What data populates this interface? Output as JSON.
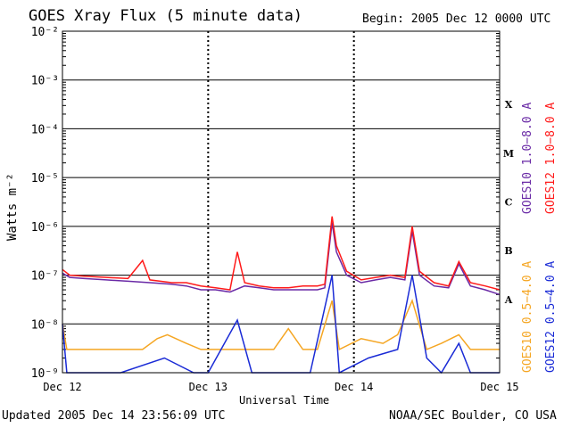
{
  "header": {
    "title": "GOES Xray Flux (5 minute data)",
    "begin": "Begin:  2005 Dec 12 0000 UTC"
  },
  "footer": {
    "updated": "Updated 2005 Dec 14 23:56:09 UTC",
    "credit": "NOAA/SEC Boulder, CO USA"
  },
  "chart_data": {
    "type": "line",
    "title": "GOES Xray Flux (5 minute data)",
    "xlabel": "Universal Time",
    "ylabel": "Watts m⁻²",
    "yscale": "log",
    "ylim_exponent": [
      -9,
      -2
    ],
    "y_tick_labels": [
      "10⁻²",
      "10⁻³",
      "10⁻⁴",
      "10⁻⁵",
      "10⁻⁶",
      "10⁻⁷",
      "10⁻⁸",
      "10⁻⁹"
    ],
    "x_tick_labels": [
      "Dec 12",
      "Dec 13",
      "Dec 14",
      "Dec 15"
    ],
    "xlim_days": [
      0,
      3
    ],
    "flare_classes": [
      "X",
      "M",
      "C",
      "B",
      "A"
    ],
    "grid": true,
    "series": [
      {
        "name": "GOES10 1.0−8.0 A",
        "color": "#6a2aa6",
        "points": [
          [
            0,
            1.1e-07
          ],
          [
            0.05,
            9e-08
          ],
          [
            0.15,
            8.5e-08
          ],
          [
            0.3,
            8e-08
          ],
          [
            0.45,
            7.5e-08
          ],
          [
            0.6,
            7e-08
          ],
          [
            0.75,
            6.5e-08
          ],
          [
            0.85,
            6e-08
          ],
          [
            0.95,
            5e-08
          ],
          [
            1.05,
            5e-08
          ],
          [
            1.15,
            4.5e-08
          ],
          [
            1.25,
            6e-08
          ],
          [
            1.35,
            5.5e-08
          ],
          [
            1.45,
            5e-08
          ],
          [
            1.55,
            5e-08
          ],
          [
            1.65,
            5e-08
          ],
          [
            1.75,
            5e-08
          ],
          [
            1.8,
            5.5e-08
          ],
          [
            1.85,
            1.2e-06
          ],
          [
            1.88,
            3e-07
          ],
          [
            1.95,
            1e-07
          ],
          [
            2.05,
            7e-08
          ],
          [
            2.15,
            8e-08
          ],
          [
            2.25,
            9e-08
          ],
          [
            2.35,
            8e-08
          ],
          [
            2.4,
            8e-07
          ],
          [
            2.45,
            1e-07
          ],
          [
            2.55,
            6e-08
          ],
          [
            2.65,
            5.5e-08
          ],
          [
            2.72,
            1.7e-07
          ],
          [
            2.8,
            6e-08
          ],
          [
            2.9,
            5e-08
          ],
          [
            3,
            4e-08
          ]
        ]
      },
      {
        "name": "GOES12 1.0−8.0 A",
        "color": "#ff1a1a",
        "points": [
          [
            0,
            1.3e-07
          ],
          [
            0.05,
            1e-07
          ],
          [
            0.15,
            9.5e-08
          ],
          [
            0.3,
            9e-08
          ],
          [
            0.45,
            8.5e-08
          ],
          [
            0.55,
            2e-07
          ],
          [
            0.6,
            8e-08
          ],
          [
            0.75,
            7e-08
          ],
          [
            0.85,
            7e-08
          ],
          [
            0.95,
            6e-08
          ],
          [
            1.05,
            5.5e-08
          ],
          [
            1.15,
            5e-08
          ],
          [
            1.2,
            3e-07
          ],
          [
            1.25,
            7e-08
          ],
          [
            1.35,
            6e-08
          ],
          [
            1.45,
            5.5e-08
          ],
          [
            1.55,
            5.5e-08
          ],
          [
            1.65,
            6e-08
          ],
          [
            1.75,
            6e-08
          ],
          [
            1.8,
            6.5e-08
          ],
          [
            1.85,
            1.6e-06
          ],
          [
            1.88,
            4e-07
          ],
          [
            1.95,
            1.2e-07
          ],
          [
            2.05,
            8e-08
          ],
          [
            2.15,
            9e-08
          ],
          [
            2.25,
            1e-07
          ],
          [
            2.35,
            9e-08
          ],
          [
            2.4,
            1e-06
          ],
          [
            2.45,
            1.2e-07
          ],
          [
            2.55,
            7e-08
          ],
          [
            2.65,
            6e-08
          ],
          [
            2.72,
            1.9e-07
          ],
          [
            2.8,
            7e-08
          ],
          [
            2.9,
            6e-08
          ],
          [
            3,
            5e-08
          ]
        ]
      },
      {
        "name": "GOES10 0.5−4.0 A",
        "color": "#f5a623",
        "points": [
          [
            0,
            1e-08
          ],
          [
            0.03,
            3e-09
          ],
          [
            0.1,
            3e-09
          ],
          [
            0.3,
            3e-09
          ],
          [
            0.55,
            3e-09
          ],
          [
            0.65,
            5e-09
          ],
          [
            0.72,
            6e-09
          ],
          [
            0.85,
            4e-09
          ],
          [
            0.95,
            3e-09
          ],
          [
            1.1,
            3e-09
          ],
          [
            1.2,
            3e-09
          ],
          [
            1.3,
            3e-09
          ],
          [
            1.45,
            3e-09
          ],
          [
            1.55,
            8e-09
          ],
          [
            1.65,
            3e-09
          ],
          [
            1.75,
            3e-09
          ],
          [
            1.85,
            3e-08
          ],
          [
            1.9,
            3e-09
          ],
          [
            2.05,
            5e-09
          ],
          [
            2.2,
            4e-09
          ],
          [
            2.3,
            6e-09
          ],
          [
            2.4,
            3e-08
          ],
          [
            2.5,
            3e-09
          ],
          [
            2.6,
            4e-09
          ],
          [
            2.72,
            6e-09
          ],
          [
            2.8,
            3e-09
          ],
          [
            3,
            3e-09
          ]
        ]
      },
      {
        "name": "GOES12 0.5−4.0 A",
        "color": "#1a2bd6",
        "points": [
          [
            0,
            1e-08
          ],
          [
            0.03,
            1e-09
          ],
          [
            0.2,
            1e-09
          ],
          [
            0.4,
            1e-09
          ],
          [
            0.7,
            2e-09
          ],
          [
            0.9,
            1e-09
          ],
          [
            1.0,
            1e-09
          ],
          [
            1.2,
            1.2e-08
          ],
          [
            1.3,
            1e-09
          ],
          [
            1.5,
            1e-09
          ],
          [
            1.7,
            1e-09
          ],
          [
            1.85,
            1e-07
          ],
          [
            1.9,
            1e-09
          ],
          [
            2.1,
            2e-09
          ],
          [
            2.3,
            3e-09
          ],
          [
            2.4,
            1e-07
          ],
          [
            2.5,
            2e-09
          ],
          [
            2.6,
            1e-09
          ],
          [
            2.72,
            4e-09
          ],
          [
            2.8,
            1e-09
          ],
          [
            3,
            1e-09
          ]
        ]
      }
    ]
  }
}
